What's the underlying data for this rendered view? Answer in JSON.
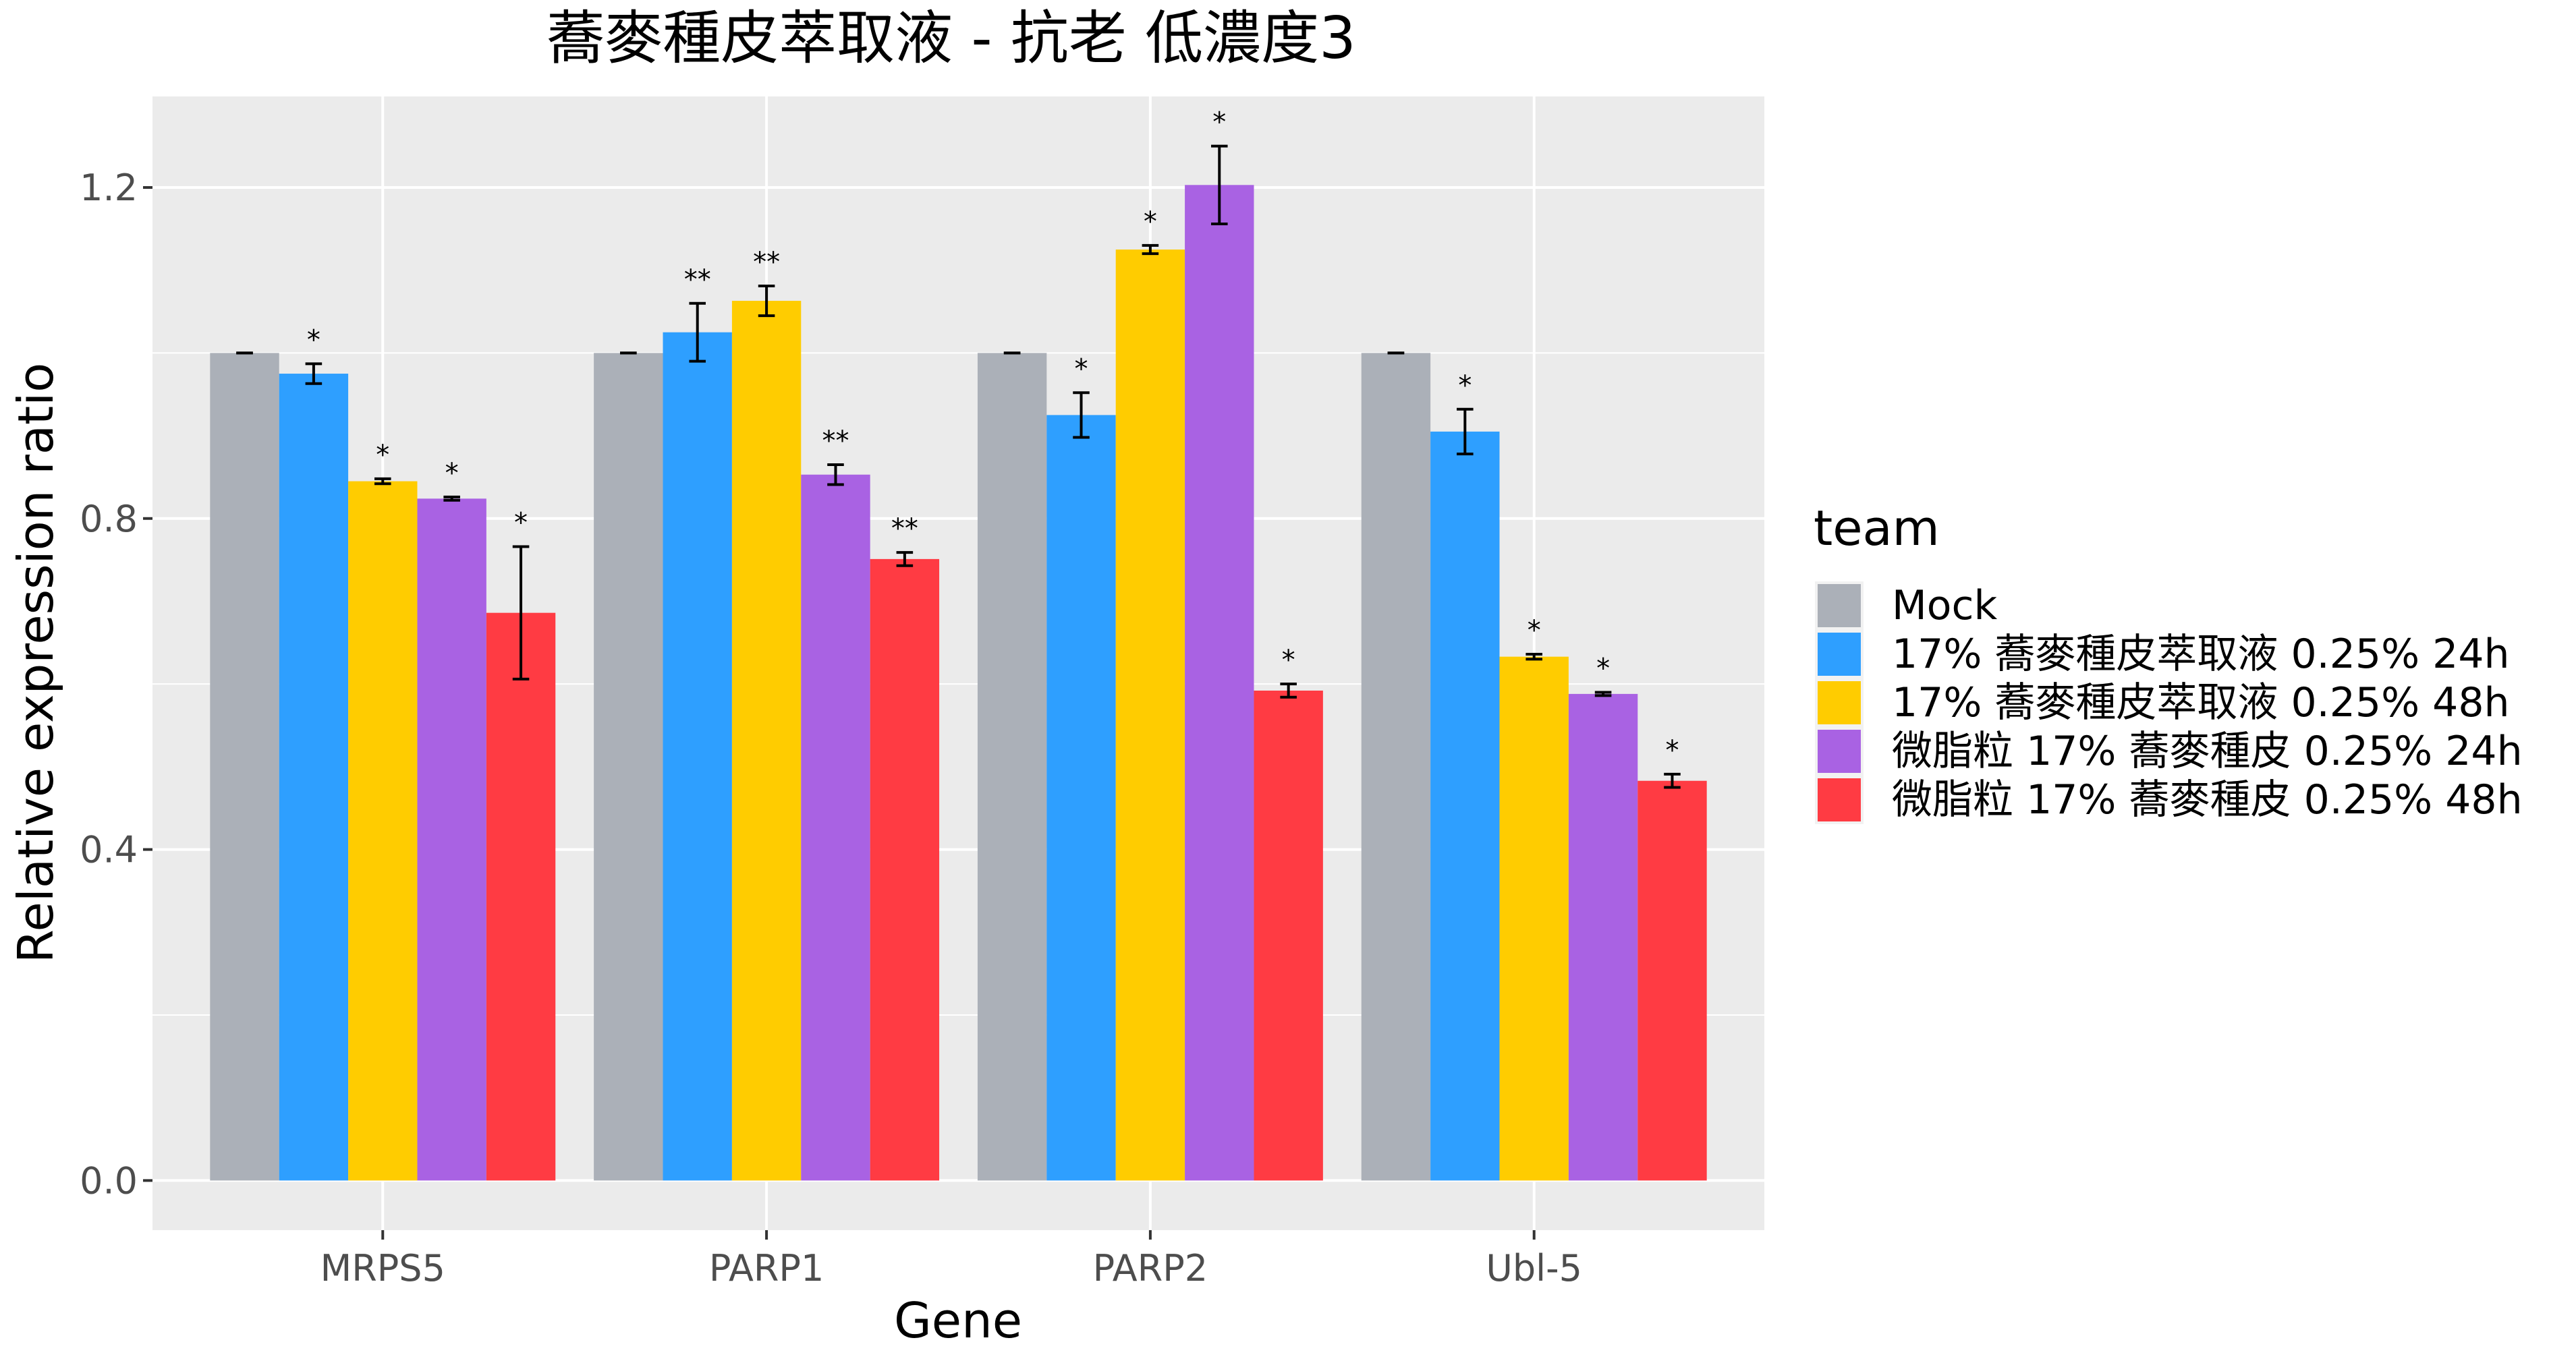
{
  "chart_data": {
    "type": "bar",
    "title": "蕎麥種皮萃取液 - 抗老 低濃度3",
    "xlabel": "Gene",
    "ylabel": "Relative expression ratio",
    "categories": [
      "MRPS5",
      "PARP1",
      "PARP2",
      "Ubl-5"
    ],
    "ylim": [
      -0.06,
      1.31
    ],
    "yticks": [
      0.0,
      0.4,
      0.8,
      1.2
    ],
    "ytick_labels": [
      "0.0",
      "0.4",
      "0.8",
      "1.2"
    ],
    "grid": true,
    "legend_title": "team",
    "legend_position": "right",
    "series": [
      {
        "name": "Mock",
        "color": "#ABB0B8",
        "values": [
          1.0,
          1.0,
          1.0,
          1.0
        ],
        "errors": [
          0.0,
          0.0,
          0.0,
          0.0
        ],
        "marks": [
          "",
          "",
          "",
          ""
        ]
      },
      {
        "name": "17% 蕎麥種皮萃取液 0.25% 24h",
        "color": "#2E9FFF",
        "values": [
          0.975,
          1.025,
          0.925,
          0.905
        ],
        "errors": [
          0.012,
          0.035,
          0.027,
          0.027
        ],
        "marks": [
          "*",
          "**",
          "*",
          "*"
        ]
      },
      {
        "name": "17% 蕎麥種皮萃取液 0.25% 48h",
        "color": "#FFCC00",
        "values": [
          0.845,
          1.063,
          1.125,
          0.633
        ],
        "errors": [
          0.003,
          0.018,
          0.005,
          0.003
        ],
        "marks": [
          "*",
          "**",
          "*",
          "*"
        ]
      },
      {
        "name": "微脂粒 17% 蕎麥種皮 0.25% 24h",
        "color": "#A962E3",
        "values": [
          0.824,
          0.853,
          1.203,
          0.588
        ],
        "errors": [
          0.002,
          0.012,
          0.047,
          0.002
        ],
        "marks": [
          "*",
          "**",
          "*",
          "*"
        ]
      },
      {
        "name": "微脂粒 17% 蕎麥種皮 0.25% 48h",
        "color": "#FF3B43",
        "values": [
          0.686,
          0.751,
          0.592,
          0.483
        ],
        "errors": [
          0.08,
          0.008,
          0.008,
          0.008
        ],
        "marks": [
          "*",
          "**",
          "*",
          "*"
        ]
      }
    ]
  }
}
